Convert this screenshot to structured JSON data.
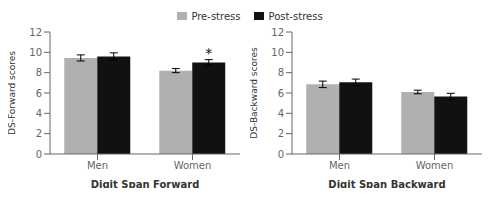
{
  "chart_data": [
    {
      "type": "bar",
      "x_label": "Digit Span Forward",
      "y_label": "DS-Forward scores",
      "categories": [
        "Men",
        "Women"
      ],
      "series": [
        {
          "name": "Pre-stress",
          "color": "#b0b0b0",
          "values": [
            9.45,
            8.2
          ],
          "errors": [
            0.3,
            0.2
          ]
        },
        {
          "name": "Post-stress",
          "color": "#111111",
          "values": [
            9.6,
            9.0
          ],
          "errors": [
            0.35,
            0.28
          ]
        }
      ],
      "ylim": [
        0,
        12
      ],
      "yticks": [
        0,
        2,
        4,
        6,
        8,
        10,
        12
      ],
      "grid": false,
      "legend": "top",
      "annotations": [
        {
          "text": "*",
          "category": "Women",
          "series": "Post-stress"
        }
      ]
    },
    {
      "type": "bar",
      "x_label": "Digit Span Backward",
      "y_label": "DS-Backward scores",
      "categories": [
        "Men",
        "Women"
      ],
      "series": [
        {
          "name": "Pre-stress",
          "color": "#b0b0b0",
          "values": [
            6.85,
            6.1
          ],
          "errors": [
            0.32,
            0.18
          ]
        },
        {
          "name": "Post-stress",
          "color": "#111111",
          "values": [
            7.05,
            5.65
          ],
          "errors": [
            0.32,
            0.32
          ]
        }
      ],
      "ylim": [
        0,
        12
      ],
      "yticks": [
        0,
        2,
        4,
        6,
        8,
        10,
        12
      ],
      "grid": false,
      "legend": "top"
    }
  ]
}
